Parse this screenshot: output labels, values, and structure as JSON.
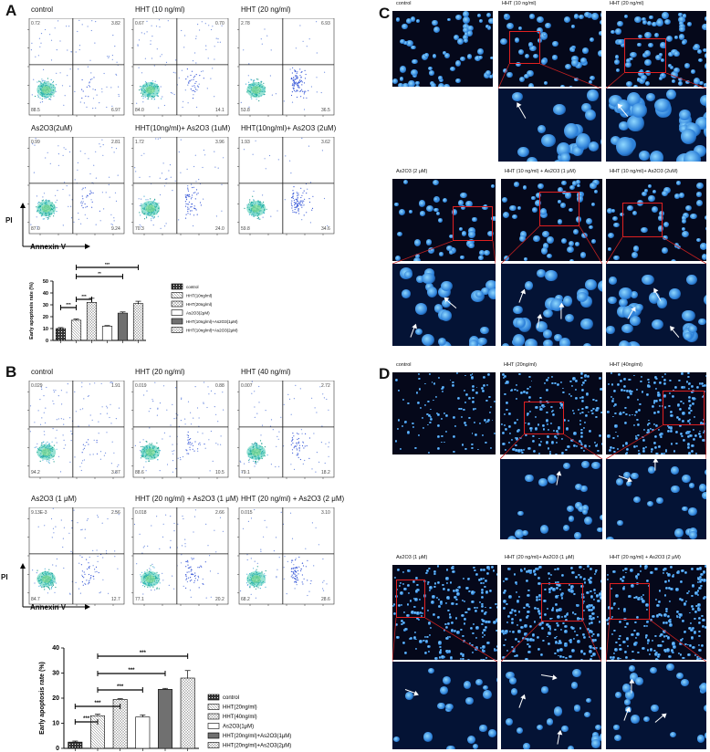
{
  "panel_labels": {
    "A": "A",
    "B": "B",
    "C": "C",
    "D": "D"
  },
  "A": {
    "axis_pi": "PI",
    "axis_annexin": "Annexin V",
    "plots": [
      {
        "title": "control",
        "ul": "0.72",
        "ur": "3.82",
        "ll": "88.5",
        "lr": "6.97"
      },
      {
        "title": "HHT (10 ng/ml)",
        "ul": "0.67",
        "ur": "0.70",
        "ll": "84.0",
        "lr": "14.1"
      },
      {
        "title": "HHT (20 ng/ml)",
        "ul": "2.78",
        "ur": "6.93",
        "ll": "53.8",
        "lr": "36.5"
      },
      {
        "title": "As2O3(2uM)",
        "ul": "0.99",
        "ur": "2.81",
        "ll": "87.0",
        "lr": "9.24"
      },
      {
        "title": "HHT(10ng/ml)+ As2O3 (1uM)",
        "ul": "1.72",
        "ur": "3.96",
        "ll": "70.3",
        "lr": "24.0"
      },
      {
        "title": "HHT(10ng/ml)+ As2O3 (2uM)",
        "ul": "1.93",
        "ur": "3.62",
        "ll": "59.8",
        "lr": "34.6"
      }
    ]
  },
  "B": {
    "axis_pi": "PI",
    "axis_annexin": "Annexin V",
    "plots": [
      {
        "title": "control",
        "ul": "0.029",
        "ur": "1.91",
        "ll": "94.2",
        "lr": "3.87"
      },
      {
        "title": "HHT (20 ng/ml)",
        "ul": "0.019",
        "ur": "0.88",
        "ll": "88.6",
        "lr": "10.5"
      },
      {
        "title": "HHT (40 ng/ml)",
        "ul": "0.007",
        "ur": "2.72",
        "ll": "79.1",
        "lr": "18.2"
      },
      {
        "title": "As2O3 (1 μM)",
        "ul": "9.13E-3",
        "ur": "2.56",
        "ll": "84.7",
        "lr": "12.7"
      },
      {
        "title": "HHT (20 ng/ml) + As2O3 (1 μM)",
        "ul": "0.018",
        "ur": "2.66",
        "ll": "77.1",
        "lr": "20.2"
      },
      {
        "title": "HHT (20 ng/ml) + As2O3 (2 μM)",
        "ul": "0.015",
        "ur": "3.10",
        "ll": "68.2",
        "lr": "28.6"
      }
    ]
  },
  "chart_data": [
    {
      "type": "bar",
      "ylabel": "Early apoptosis rate (%)",
      "ylim": [
        0,
        50
      ],
      "yticks": [
        "0",
        "10",
        "20",
        "30",
        "40",
        "50"
      ],
      "categories": [
        "control",
        "HHT(10ng/ml)",
        "HHT(20ng/ml)",
        "As2O3(2μM)",
        "HHT(10ng/ml)+As2O3(1μM)",
        "HHT(10ng/ml)+As2O3(2μM)"
      ],
      "values": [
        10,
        17,
        32,
        12,
        23,
        31
      ],
      "errors": [
        0.8,
        1,
        3.5,
        0.5,
        1,
        2
      ],
      "sig": [
        {
          "label": "***",
          "from": 0,
          "to": 1
        },
        {
          "label": "***",
          "from": 1,
          "to": 2
        },
        {
          "label": "**",
          "from": 1,
          "to": 4
        },
        {
          "label": "***",
          "from": 1,
          "to": 5
        }
      ]
    },
    {
      "type": "bar",
      "ylabel": "Early apoptosis rate (%)",
      "ylim": [
        0,
        40
      ],
      "yticks": [
        "0",
        "10",
        "20",
        "30",
        "40"
      ],
      "categories": [
        "control",
        "HHT(20ng/ml)",
        "HHT(40ng/ml)",
        "As2O3(1μM)",
        "HHT(20ng/ml)+As2O3(1μM)",
        "HHT(20ng/ml)+As2O3(2μM)"
      ],
      "values": [
        2.5,
        13,
        19.5,
        12.5,
        23.5,
        28
      ],
      "errors": [
        0.4,
        0.6,
        0.3,
        0.8,
        0.4,
        3
      ],
      "sig": [
        {
          "label": "***",
          "from": 0,
          "to": 1
        },
        {
          "label": "***",
          "from": 0,
          "to": 2
        },
        {
          "label": "***",
          "from": 1,
          "to": 3
        },
        {
          "label": "***",
          "from": 1,
          "to": 4
        },
        {
          "label": "***",
          "from": 1,
          "to": 5
        }
      ]
    }
  ],
  "C": {
    "captions": [
      "control",
      "HHT (10 ng/ml)",
      "HHT (20 ng/ml)",
      "As2O3 (2 μM)",
      "HHT (10 ng/ml) + As2O3 (1 μM)",
      "HHT (10 ng/ml)+ As2O3 (2uM)"
    ]
  },
  "D": {
    "captions": [
      "control",
      "HHT (20ng/ml)",
      "HHT (40ng/ml)",
      "As2O3 (1 μM)",
      "HHT (20 ng/ml)+ As2O3 (1 μM)",
      "HHT (20 ng/ml) + As2O3 (2 μM)"
    ]
  }
}
